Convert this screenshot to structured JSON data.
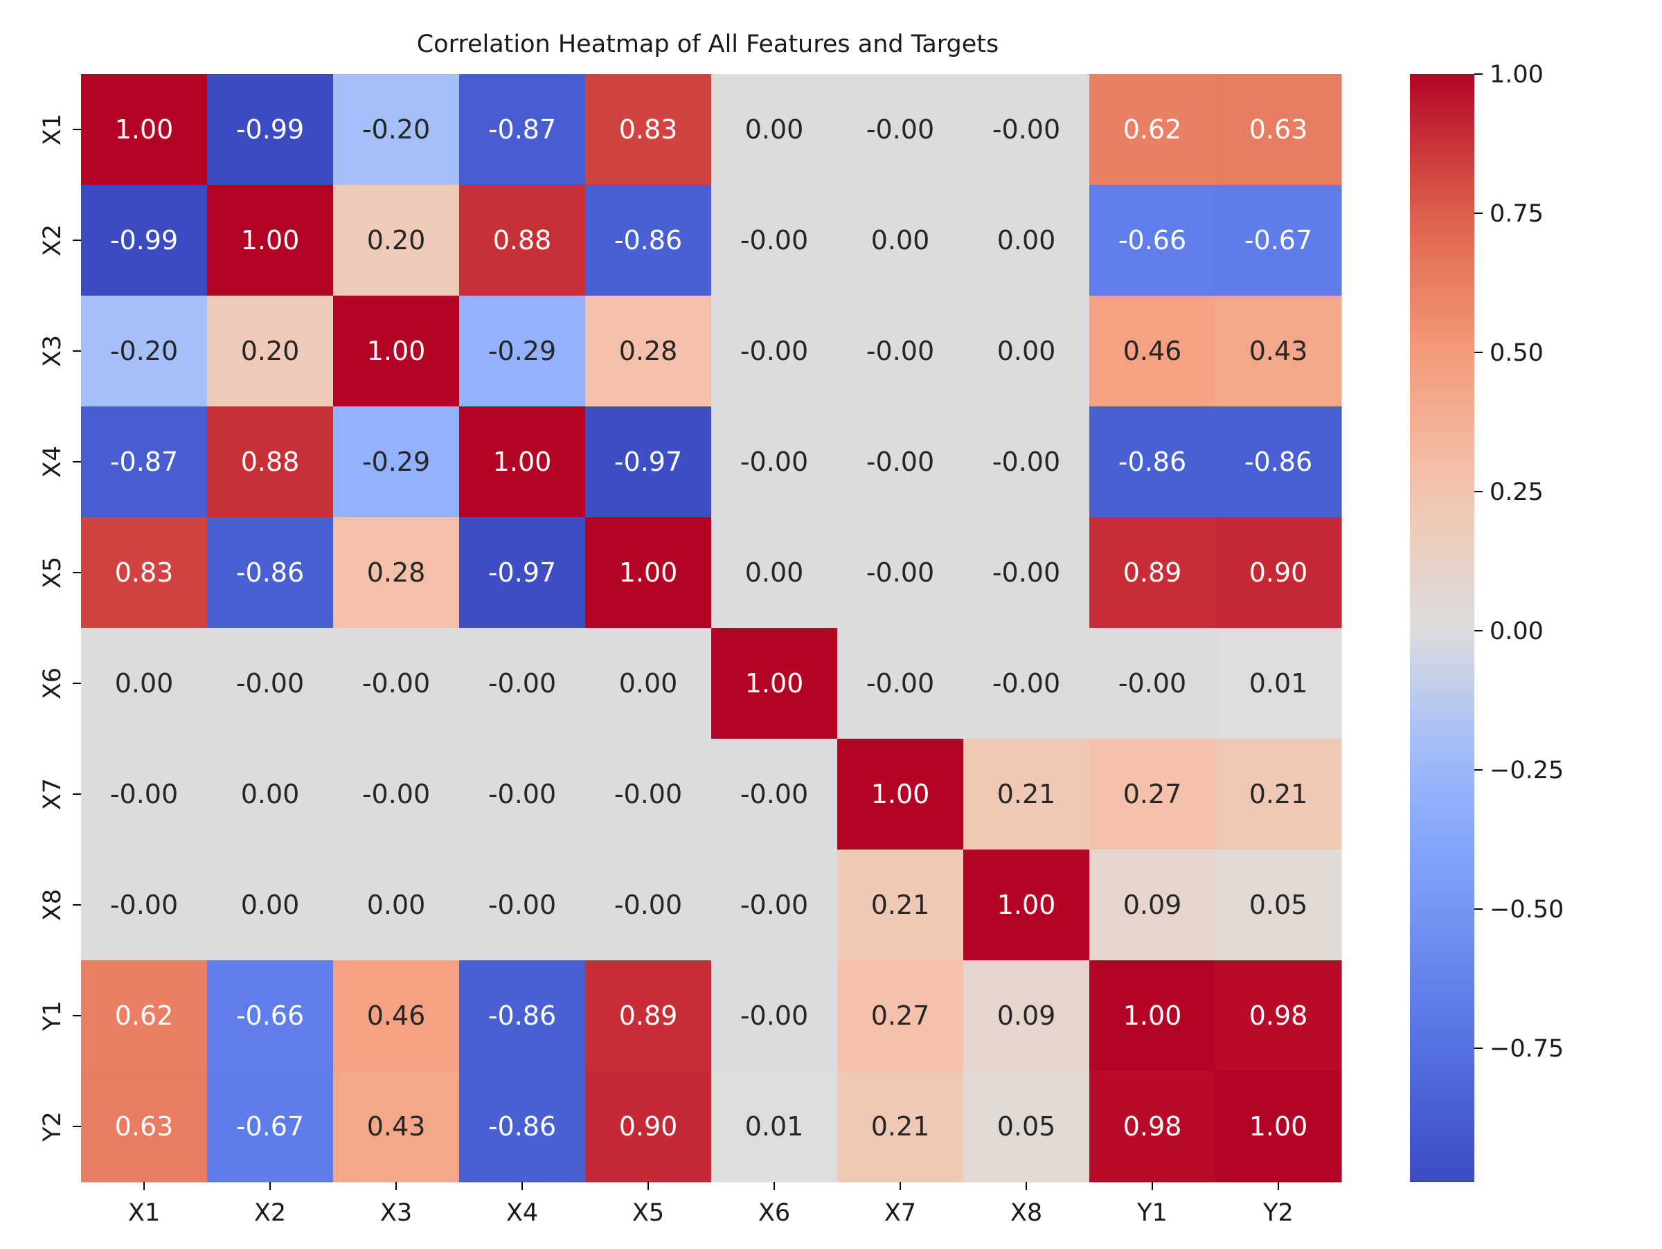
{
  "chart_data": {
    "type": "heatmap",
    "title": "Correlation Heatmap of All Features and Targets",
    "xlabel": "",
    "ylabel": "",
    "x_labels": [
      "X1",
      "X2",
      "X3",
      "X4",
      "X5",
      "X6",
      "X7",
      "X8",
      "Y1",
      "Y2"
    ],
    "y_labels": [
      "X1",
      "X2",
      "X3",
      "X4",
      "X5",
      "X6",
      "X7",
      "X8",
      "Y1",
      "Y2"
    ],
    "values": [
      [
        1.0,
        -0.99,
        -0.2,
        -0.87,
        0.83,
        0.0,
        -0.0,
        -0.0,
        0.62,
        0.63
      ],
      [
        -0.99,
        1.0,
        0.2,
        0.88,
        -0.86,
        -0.0,
        0.0,
        0.0,
        -0.66,
        -0.67
      ],
      [
        -0.2,
        0.2,
        1.0,
        -0.29,
        0.28,
        -0.0,
        -0.0,
        0.0,
        0.46,
        0.43
      ],
      [
        -0.87,
        0.88,
        -0.29,
        1.0,
        -0.97,
        -0.0,
        -0.0,
        -0.0,
        -0.86,
        -0.86
      ],
      [
        0.83,
        -0.86,
        0.28,
        -0.97,
        1.0,
        0.0,
        -0.0,
        -0.0,
        0.89,
        0.9
      ],
      [
        0.0,
        -0.0,
        -0.0,
        -0.0,
        0.0,
        1.0,
        -0.0,
        -0.0,
        -0.0,
        0.01
      ],
      [
        -0.0,
        0.0,
        -0.0,
        -0.0,
        -0.0,
        -0.0,
        1.0,
        0.21,
        0.27,
        0.21
      ],
      [
        -0.0,
        0.0,
        0.0,
        -0.0,
        -0.0,
        -0.0,
        0.21,
        1.0,
        0.09,
        0.05
      ],
      [
        0.62,
        -0.66,
        0.46,
        -0.86,
        0.89,
        -0.0,
        0.27,
        0.09,
        1.0,
        0.98
      ],
      [
        0.63,
        -0.67,
        0.43,
        -0.86,
        0.9,
        0.01,
        0.21,
        0.05,
        0.98,
        1.0
      ]
    ],
    "annotations": [
      [
        "1.00",
        "-0.99",
        "-0.20",
        "-0.87",
        "0.83",
        "0.00",
        "-0.00",
        "-0.00",
        "0.62",
        "0.63"
      ],
      [
        "-0.99",
        "1.00",
        "0.20",
        "0.88",
        "-0.86",
        "-0.00",
        "0.00",
        "0.00",
        "-0.66",
        "-0.67"
      ],
      [
        "-0.20",
        "0.20",
        "1.00",
        "-0.29",
        "0.28",
        "-0.00",
        "-0.00",
        "0.00",
        "0.46",
        "0.43"
      ],
      [
        "-0.87",
        "0.88",
        "-0.29",
        "1.00",
        "-0.97",
        "-0.00",
        "-0.00",
        "-0.00",
        "-0.86",
        "-0.86"
      ],
      [
        "0.83",
        "-0.86",
        "0.28",
        "-0.97",
        "1.00",
        "0.00",
        "-0.00",
        "-0.00",
        "0.89",
        "0.90"
      ],
      [
        "0.00",
        "-0.00",
        "-0.00",
        "-0.00",
        "0.00",
        "1.00",
        "-0.00",
        "-0.00",
        "-0.00",
        "0.01"
      ],
      [
        "-0.00",
        "0.00",
        "-0.00",
        "-0.00",
        "-0.00",
        "-0.00",
        "1.00",
        "0.21",
        "0.27",
        "0.21"
      ],
      [
        "-0.00",
        "0.00",
        "0.00",
        "-0.00",
        "-0.00",
        "-0.00",
        "0.21",
        "1.00",
        "0.09",
        "0.05"
      ],
      [
        "0.62",
        "-0.66",
        "0.46",
        "-0.86",
        "0.89",
        "-0.00",
        "0.27",
        "0.09",
        "1.00",
        "0.98"
      ],
      [
        "0.63",
        "-0.67",
        "0.43",
        "-0.86",
        "0.90",
        "0.01",
        "0.21",
        "0.05",
        "0.98",
        "1.00"
      ]
    ],
    "colormap": "coolwarm",
    "vmin": -0.99,
    "vmax": 1.0,
    "colorbar_ticks": [
      1.0,
      0.75,
      0.5,
      0.25,
      0.0,
      -0.25,
      -0.5,
      -0.75
    ],
    "colorbar_tick_labels": [
      "1.00",
      "0.75",
      "0.50",
      "0.25",
      "0.00",
      "−0.25",
      "−0.50",
      "−0.75"
    ],
    "grid": false,
    "legend": "colorbar-right"
  }
}
